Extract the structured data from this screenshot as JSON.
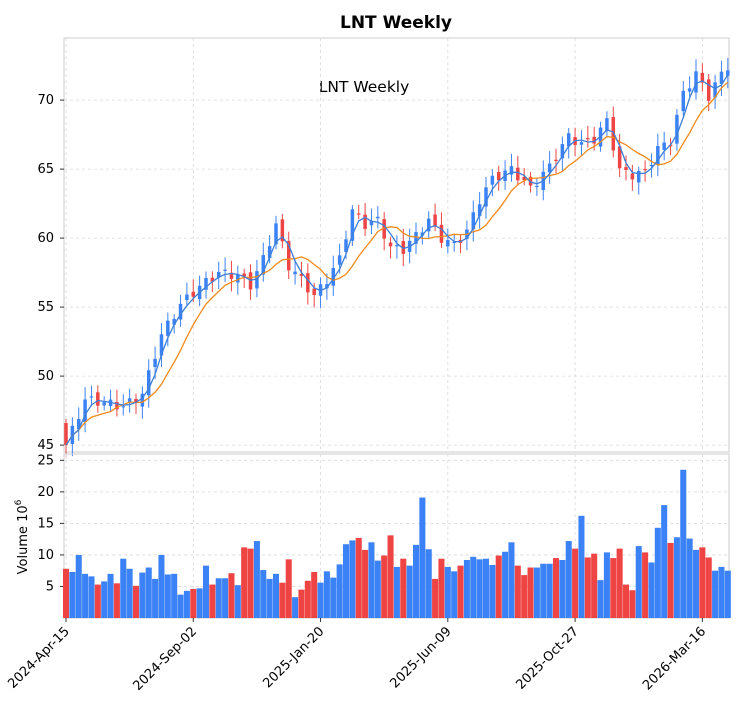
{
  "chart_data": [
    {
      "type": "candlestick",
      "title": "LNT  Weekly",
      "annotation": "LNT  Weekly",
      "ylabel": "",
      "ylim": [
        44.5,
        74.5
      ],
      "yticks": [
        45,
        50,
        55,
        60,
        65,
        70
      ],
      "moving_averages": [
        "short MA (blue)",
        "long MA (orange)"
      ],
      "colors": {
        "up": "#3b82f6",
        "down": "#ef4444",
        "ma_short": "#3f7fd6",
        "ma_long": "#f08a1a"
      },
      "x_tick_labels": [
        "2024-Apr-15",
        "2024-Sep-02",
        "2025-Jan-20",
        "2025-Jun-09",
        "2025-Oct-27",
        "2026-Mar-16"
      ],
      "x_tick_indices": [
        0,
        20,
        40,
        60,
        80,
        100
      ],
      "grid": true
    },
    {
      "type": "bar",
      "ylabel": "Volume  10",
      "ylabel_exp": "6",
      "ylim": [
        0,
        26
      ],
      "yticks": [
        5,
        10,
        15,
        20,
        25
      ],
      "grid": true,
      "volume": [
        7.8,
        7.3,
        10,
        7,
        6.6,
        5.3,
        5.8,
        7,
        5.5,
        9.4,
        7.8,
        5.1,
        7.2,
        8,
        6.2,
        10,
        6.9,
        7,
        3.7,
        4.3,
        4.6,
        4.7,
        8.3,
        5.3,
        6.3,
        6.3,
        7.1,
        5.2,
        11.2,
        11,
        12.2,
        7.6,
        6.2,
        7,
        5.6,
        9.3,
        3.3,
        4.5,
        5.9,
        7.3,
        5.6,
        7.4,
        6.4,
        8.5,
        11.7,
        12.3,
        12.7,
        10.8,
        12,
        9.1,
        9.9,
        13.1,
        8.1,
        9.4,
        8.3,
        11.6,
        19.1,
        10.9,
        6.2,
        9.4,
        8.1,
        7.4,
        8.3,
        9.2,
        9.7,
        9.3,
        9.4,
        8.4,
        9.9,
        10.5,
        12,
        8.3,
        6.8,
        8,
        8,
        8.6,
        8.6,
        9.5,
        9.2,
        12.2,
        11,
        16.2,
        9.6,
        10.2,
        6,
        10.4,
        9.5,
        11,
        5.3,
        4.4,
        11.4,
        10.4,
        8.8,
        14.3,
        17.9,
        11.9,
        12.8,
        23.5,
        12.6,
        10.8,
        11.2,
        9.6,
        7.5,
        8.1,
        7.5
      ]
    }
  ]
}
